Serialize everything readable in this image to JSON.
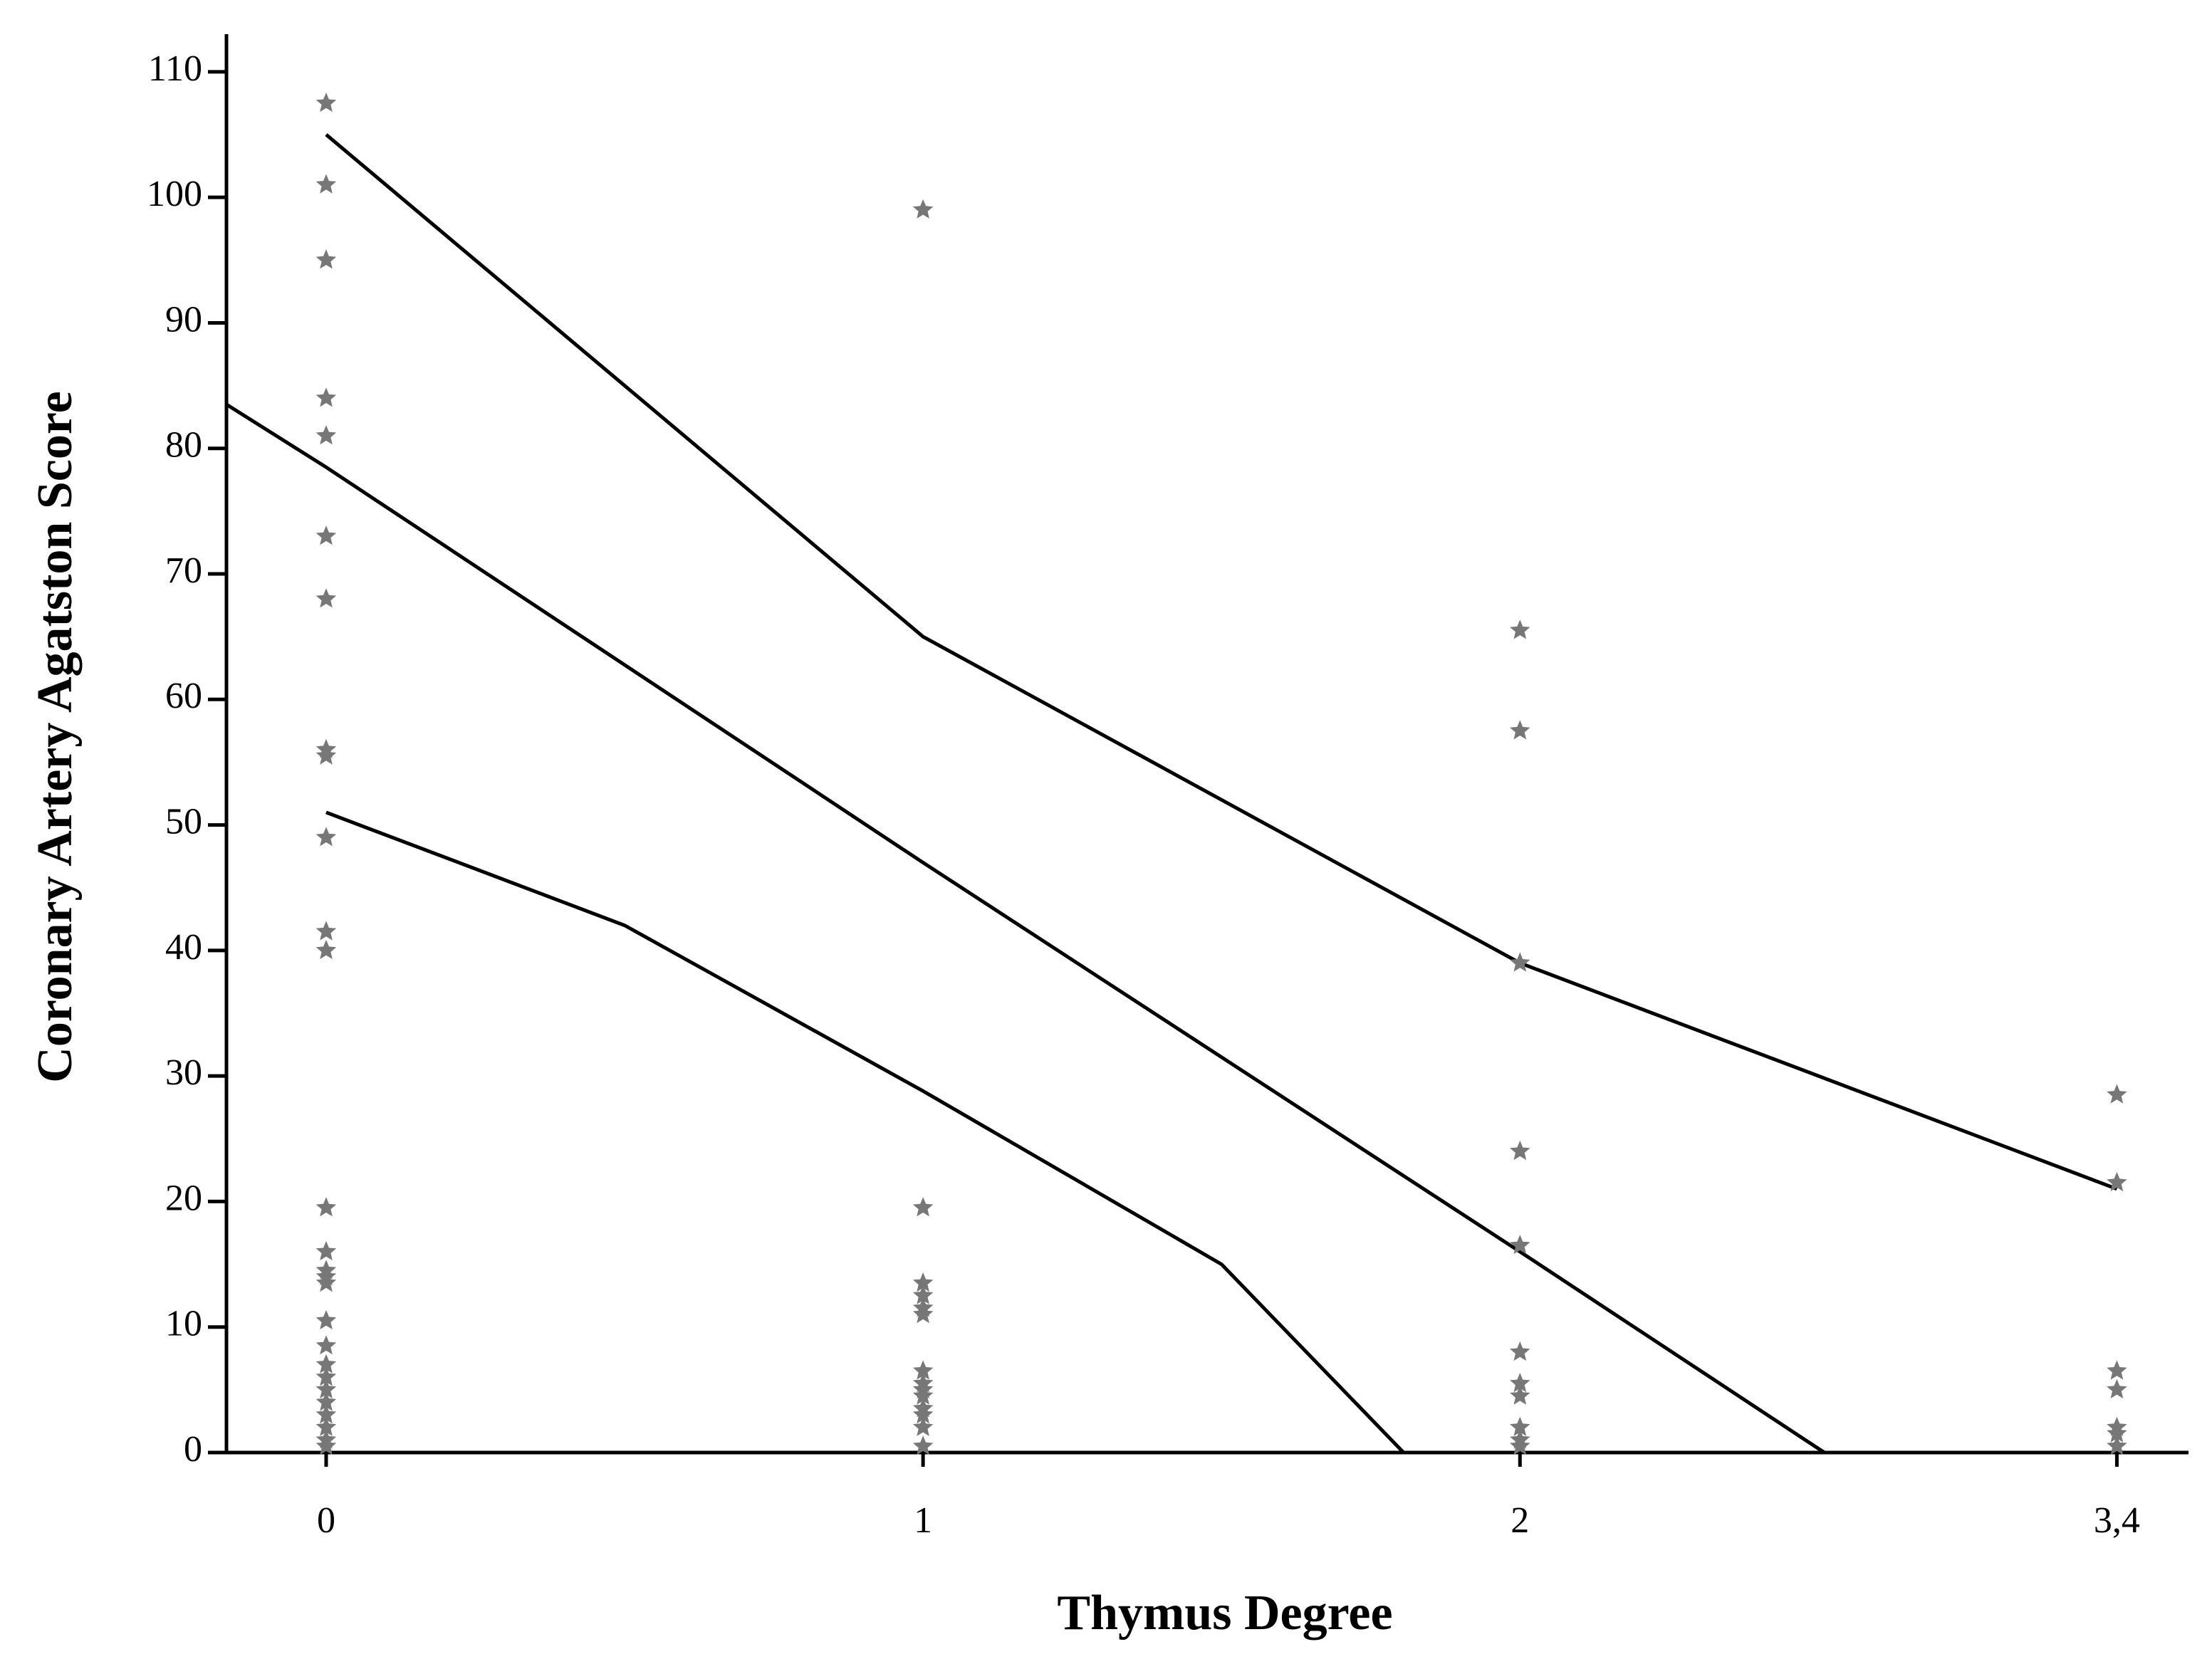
{
  "chart_data": {
    "type": "scatter",
    "x_label": "Thymus Degree",
    "y_label": "Coronary Artery Agatston Score",
    "xlim": [
      -0.167,
      3.12
    ],
    "xticks": [
      0,
      1,
      2,
      {
        "value": 3,
        "label": "3,4"
      }
    ],
    "ylim": [
      0,
      113
    ],
    "yticks": [
      0,
      10,
      20,
      30,
      40,
      50,
      60,
      70,
      80,
      90,
      100,
      110
    ],
    "grid": false,
    "series": [
      {
        "marker": "star",
        "color": "#777777",
        "x": [
          0,
          0,
          0,
          0,
          0,
          0,
          0,
          0,
          0,
          0,
          0,
          0,
          0,
          0,
          0,
          0,
          0,
          0,
          0,
          0,
          0,
          0,
          0,
          0,
          0,
          0,
          0,
          1,
          1,
          1,
          1,
          1,
          1,
          1,
          1,
          1,
          1,
          1,
          1,
          1,
          1,
          2,
          2,
          2,
          2,
          2,
          2,
          2,
          2,
          2,
          2,
          2,
          3,
          3,
          3,
          3,
          3,
          3,
          3
        ],
        "y": [
          107.5,
          101,
          95,
          84,
          81,
          73,
          68,
          56,
          55.5,
          49,
          41.5,
          40,
          19.5,
          16,
          14.5,
          14,
          13.5,
          10.5,
          8.5,
          7,
          6,
          5,
          4,
          3,
          2,
          1,
          0.5,
          99,
          19.5,
          13.5,
          12.5,
          11.5,
          11,
          6.5,
          5.5,
          5,
          4.5,
          3.5,
          3,
          2,
          0.5,
          65.5,
          57.5,
          39,
          24,
          16.5,
          8,
          5.5,
          4.5,
          2,
          1,
          0.5,
          28.5,
          21.5,
          6.5,
          5,
          2,
          1.5,
          0.5
        ]
      }
    ],
    "lines": [
      {
        "color": "#000000",
        "x": [
          0,
          0.5,
          1,
          1.5,
          2,
          2.5,
          3
        ],
        "y": [
          105,
          85,
          65,
          52,
          39,
          30,
          21
        ]
      },
      {
        "color": "#000000",
        "x": [
          -0.167,
          0,
          1,
          2,
          2.51
        ],
        "y": [
          83.5,
          78.5,
          47,
          16,
          0
        ]
      },
      {
        "color": "#000000",
        "x": [
          0,
          0.5,
          1,
          1.5,
          1.805
        ],
        "y": [
          51,
          42,
          28.8,
          15,
          0
        ]
      }
    ]
  }
}
